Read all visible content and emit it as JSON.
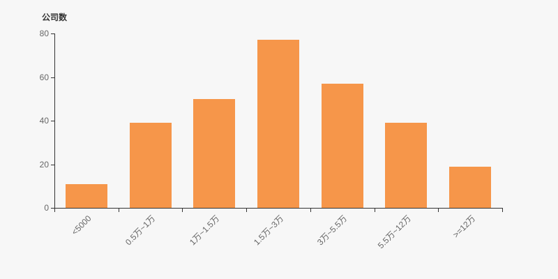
{
  "colors": {
    "background": "#f7f7f7",
    "bar": "#f6964a",
    "axis": "#333333",
    "tick_label": "#666666",
    "title": "#333333"
  },
  "chart_data": {
    "type": "bar",
    "title": "公司数",
    "ylabel": "公司数",
    "xlabel": "",
    "categories": [
      "<5000",
      "0.5万~1万",
      "1万~1.5万",
      "1.5万~3万",
      "3万~5.5万",
      "5.5万~12万",
      ">=12万"
    ],
    "values": [
      11,
      39,
      50,
      77,
      57,
      39,
      19
    ],
    "ylim": [
      0,
      80
    ],
    "yticks": [
      0,
      20,
      40,
      60,
      80
    ],
    "grid": false,
    "legend": false,
    "x_label_rotation": 45
  }
}
